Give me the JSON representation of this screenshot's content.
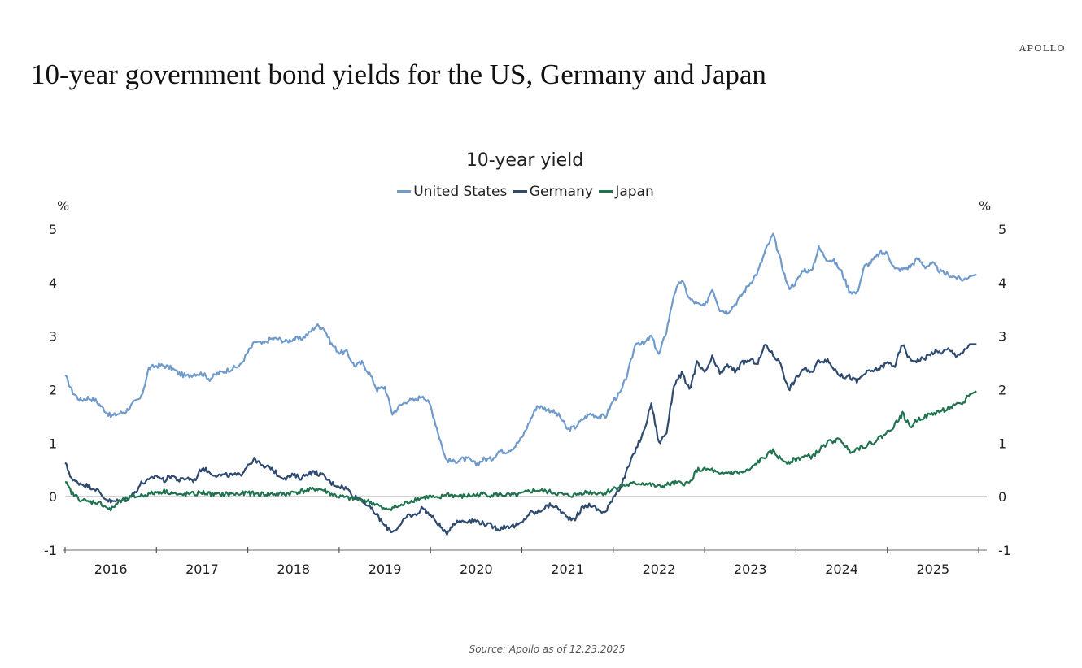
{
  "header": {
    "brand": "APOLLO",
    "title": "10-year government bond yields for the US, Germany and Japan"
  },
  "footer": {
    "source": "Source: Apollo as of 12.23.2025"
  },
  "chart_data": {
    "type": "line",
    "title": "10-year yield",
    "xlabel": "",
    "ylabel": "%",
    "ylabel_right": "%",
    "ylim": [
      -1,
      5
    ],
    "yticks": [
      "5",
      "4",
      "3",
      "2",
      "1",
      "0",
      "-1"
    ],
    "yticks_right": [
      "5",
      "4",
      "3",
      "2",
      "1",
      "0",
      "-1"
    ],
    "xlim": [
      2016.0,
      2026.1
    ],
    "xticks": [
      "2016",
      "2017",
      "2018",
      "2019",
      "2020",
      "2021",
      "2022",
      "2023",
      "2024",
      "2025"
    ],
    "legend_position": "top-center",
    "zero_line": true,
    "x_start": 2016.0,
    "x_step_years": 0.08333,
    "series": [
      {
        "name": "United States",
        "color": "#6f9acb",
        "values": [
          2.27,
          1.95,
          1.8,
          1.85,
          1.8,
          1.65,
          1.5,
          1.55,
          1.6,
          1.75,
          1.85,
          2.4,
          2.45,
          2.45,
          2.4,
          2.3,
          2.25,
          2.3,
          2.3,
          2.2,
          2.3,
          2.35,
          2.4,
          2.45,
          2.7,
          2.9,
          2.85,
          2.95,
          2.95,
          2.9,
          2.95,
          2.95,
          3.05,
          3.2,
          3.15,
          2.85,
          2.7,
          2.7,
          2.45,
          2.5,
          2.3,
          2.0,
          2.05,
          1.55,
          1.7,
          1.8,
          1.8,
          1.9,
          1.7,
          1.2,
          0.7,
          0.65,
          0.7,
          0.7,
          0.6,
          0.7,
          0.7,
          0.85,
          0.85,
          0.93,
          1.1,
          1.4,
          1.7,
          1.65,
          1.6,
          1.5,
          1.25,
          1.3,
          1.45,
          1.55,
          1.5,
          1.5,
          1.8,
          1.95,
          2.35,
          2.9,
          2.85,
          3.0,
          2.65,
          3.1,
          3.8,
          4.05,
          3.7,
          3.6,
          3.55,
          3.9,
          3.5,
          3.45,
          3.6,
          3.8,
          4.0,
          4.2,
          4.6,
          4.9,
          4.4,
          3.9,
          4.0,
          4.25,
          4.2,
          4.65,
          4.45,
          4.4,
          4.2,
          3.85,
          3.8,
          4.3,
          4.4,
          4.55,
          4.55,
          4.25,
          4.25,
          4.3,
          4.45,
          4.3,
          4.35,
          4.2,
          4.15,
          4.1,
          4.05,
          4.15
        ]
      },
      {
        "name": "Germany",
        "color": "#2f4a70",
        "values": [
          0.63,
          0.3,
          0.25,
          0.2,
          0.15,
          0.0,
          -0.1,
          -0.08,
          -0.05,
          0.05,
          0.25,
          0.3,
          0.4,
          0.3,
          0.4,
          0.3,
          0.35,
          0.3,
          0.55,
          0.45,
          0.4,
          0.4,
          0.4,
          0.4,
          0.6,
          0.7,
          0.55,
          0.55,
          0.4,
          0.35,
          0.4,
          0.35,
          0.45,
          0.45,
          0.38,
          0.25,
          0.2,
          0.15,
          0.0,
          -0.05,
          -0.2,
          -0.35,
          -0.55,
          -0.65,
          -0.55,
          -0.35,
          -0.35,
          -0.2,
          -0.35,
          -0.5,
          -0.7,
          -0.5,
          -0.45,
          -0.45,
          -0.45,
          -0.5,
          -0.55,
          -0.6,
          -0.55,
          -0.55,
          -0.5,
          -0.3,
          -0.3,
          -0.2,
          -0.15,
          -0.25,
          -0.4,
          -0.4,
          -0.2,
          -0.15,
          -0.25,
          -0.3,
          0.0,
          0.2,
          0.55,
          0.9,
          1.2,
          1.75,
          1.0,
          1.2,
          2.1,
          2.3,
          2.0,
          2.5,
          2.3,
          2.6,
          2.3,
          2.45,
          2.35,
          2.5,
          2.55,
          2.5,
          2.85,
          2.65,
          2.5,
          2.0,
          2.2,
          2.4,
          2.3,
          2.55,
          2.55,
          2.4,
          2.25,
          2.25,
          2.15,
          2.3,
          2.35,
          2.4,
          2.5,
          2.45,
          2.85,
          2.55,
          2.55,
          2.6,
          2.7,
          2.7,
          2.75,
          2.65,
          2.7,
          2.85
        ]
      },
      {
        "name": "Japan",
        "color": "#20734f",
        "values": [
          0.27,
          0.05,
          -0.05,
          -0.1,
          -0.1,
          -0.15,
          -0.25,
          -0.1,
          -0.05,
          0.0,
          0.02,
          0.05,
          0.08,
          0.1,
          0.08,
          0.02,
          0.05,
          0.05,
          0.08,
          0.05,
          0.03,
          0.05,
          0.05,
          0.05,
          0.07,
          0.05,
          0.05,
          0.05,
          0.05,
          0.05,
          0.08,
          0.1,
          0.12,
          0.15,
          0.12,
          0.05,
          0.0,
          -0.02,
          -0.05,
          -0.05,
          -0.1,
          -0.15,
          -0.25,
          -0.2,
          -0.18,
          -0.1,
          -0.05,
          -0.02,
          0.0,
          -0.05,
          0.05,
          0.02,
          0.0,
          0.02,
          0.03,
          0.05,
          0.03,
          0.04,
          0.03,
          0.02,
          0.05,
          0.1,
          0.12,
          0.1,
          0.08,
          0.05,
          0.02,
          0.03,
          0.08,
          0.08,
          0.07,
          0.07,
          0.15,
          0.2,
          0.22,
          0.25,
          0.25,
          0.22,
          0.18,
          0.22,
          0.25,
          0.25,
          0.25,
          0.5,
          0.5,
          0.5,
          0.4,
          0.45,
          0.45,
          0.45,
          0.5,
          0.65,
          0.75,
          0.85,
          0.7,
          0.65,
          0.7,
          0.75,
          0.75,
          0.85,
          1.0,
          1.05,
          1.05,
          0.85,
          0.9,
          0.95,
          1.0,
          1.1,
          1.2,
          1.35,
          1.55,
          1.3,
          1.45,
          1.5,
          1.55,
          1.6,
          1.65,
          1.7,
          1.75,
          1.97
        ]
      }
    ]
  }
}
